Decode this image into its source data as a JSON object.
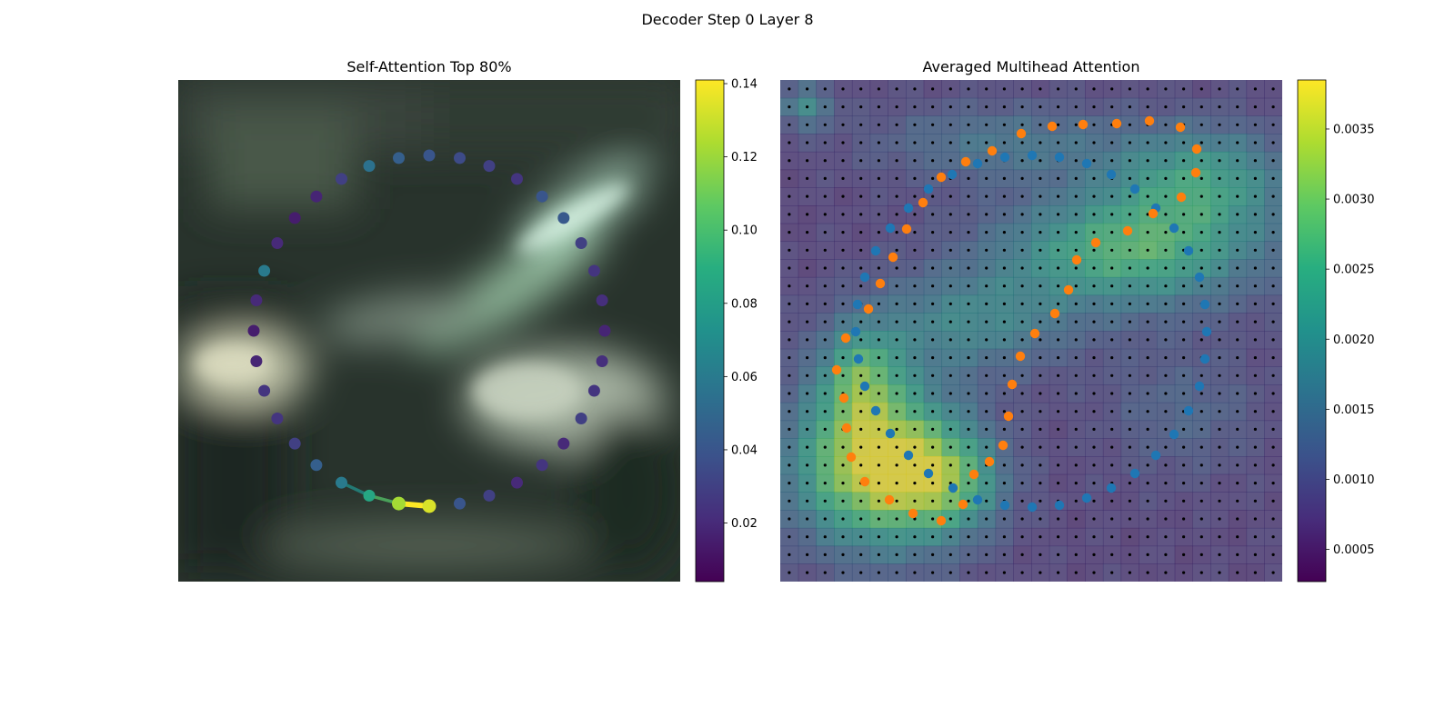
{
  "figure": {
    "title": "Decoder Step 0 Layer 8"
  },
  "chart_data": [
    {
      "type": "scatter",
      "panel": "left",
      "title": "Self-Attention Top 80%",
      "background": "blurred street scene with bright green-white diagonal streaks",
      "colormap": "viridis",
      "colorbar": {
        "range": [
          0.004,
          0.141
        ],
        "ticks": [
          0.02,
          0.04,
          0.06,
          0.08,
          0.1,
          0.12,
          0.14
        ],
        "tick_labels": [
          "0.02",
          "0.04",
          "0.06",
          "0.08",
          "0.10",
          "0.12",
          "0.14"
        ]
      },
      "ring": {
        "count": 36,
        "center": [
          472,
          364
        ],
        "radius": 193,
        "start_angle_deg": 90,
        "values": [
          0.133,
          0.122,
          0.085,
          0.06,
          0.045,
          0.03,
          0.025,
          0.025,
          0.018,
          0.015,
          0.02,
          0.06,
          0.02,
          0.015,
          0.018,
          0.03,
          0.055,
          0.045,
          0.04,
          0.035,
          0.03,
          0.025,
          0.04,
          0.042,
          0.03,
          0.025,
          0.022,
          0.018,
          0.022,
          0.025,
          0.03,
          0.02,
          0.025,
          0.02,
          0.03,
          0.04
        ]
      },
      "highlight_segment": {
        "from_index": 0,
        "to_index": 3,
        "color": "#fde725"
      }
    },
    {
      "type": "heatmap",
      "panel": "right",
      "title": "Averaged Multihead Attention",
      "colormap": "viridis",
      "grid_cells": [
        28,
        28
      ],
      "colorbar": {
        "range": [
          0.00027,
          0.00385
        ],
        "ticks": [
          0.0005,
          0.001,
          0.0015,
          0.002,
          0.0025,
          0.003,
          0.0035
        ],
        "tick_labels": [
          "0.0005",
          "0.0010",
          "0.0015",
          "0.0020",
          "0.0025",
          "0.0030",
          "0.0035"
        ]
      },
      "blobs": [
        {
          "cx": 5,
          "cy": 21,
          "sx": 3.2,
          "sy": 3.0,
          "amp": 0.0032
        },
        {
          "cx": 9,
          "cy": 22,
          "sx": 2.0,
          "sy": 2.0,
          "amp": 0.0014
        },
        {
          "cx": 4,
          "cy": 16,
          "sx": 1.6,
          "sy": 2.0,
          "amp": 0.0016
        },
        {
          "cx": 19,
          "cy": 9,
          "sx": 5.0,
          "sy": 2.2,
          "amp": 0.002
        },
        {
          "cx": 23,
          "cy": 5,
          "sx": 3.5,
          "sy": 2.0,
          "amp": 0.0015
        },
        {
          "cx": 10,
          "cy": 13,
          "sx": 4.0,
          "sy": 2.0,
          "amp": 0.0011
        },
        {
          "cx": 12,
          "cy": 3,
          "sx": 5.0,
          "sy": 1.5,
          "amp": 0.0008
        },
        {
          "cx": 1,
          "cy": 1,
          "sx": 1.0,
          "sy": 0.8,
          "amp": 0.0012
        },
        {
          "cx": 22,
          "cy": 18,
          "sx": 3.0,
          "sy": 2.5,
          "amp": 0.0005
        }
      ],
      "base_value": 0.0007,
      "dot_grid": {
        "rows": 28,
        "cols": 28,
        "color": "#000000"
      },
      "series": [
        {
          "name": "",
          "color": "#1f77b4",
          "points": [
            [
              1195,
              548
            ],
            [
              1165,
              556
            ],
            [
              1135,
              558
            ],
            [
              1105,
              556
            ],
            [
              1075,
              550
            ],
            [
              1048,
              537
            ],
            [
              1021,
              521
            ],
            [
              999,
              501
            ],
            [
              979,
              477
            ],
            [
              963,
              452
            ],
            [
              951,
              425
            ],
            [
              944,
              395
            ],
            [
              941,
              365
            ],
            [
              943,
              335
            ],
            [
              951,
              305
            ],
            [
              963,
              276
            ],
            [
              979,
              251
            ],
            [
              999,
              229
            ],
            [
              1021,
              208
            ],
            [
              1047,
              192
            ],
            [
              1075,
              180
            ],
            [
              1105,
              173
            ],
            [
              1135,
              171
            ],
            [
              1165,
              173
            ],
            [
              1195,
              180
            ],
            [
              1222,
              192
            ],
            [
              1248,
              208
            ],
            [
              1271,
              229
            ],
            [
              1291,
              251
            ],
            [
              1307,
              276
            ],
            [
              1319,
              305
            ],
            [
              1325,
              335
            ],
            [
              1327,
              365
            ],
            [
              1325,
              395
            ],
            [
              1319,
              425
            ],
            [
              1307,
              452
            ],
            [
              1291,
              478
            ],
            [
              1271,
              501
            ],
            [
              1248,
              521
            ],
            [
              1222,
              537
            ]
          ]
        },
        {
          "name": "",
          "color": "#ff7f0e",
          "points": [
            [
              1035,
              573
            ],
            [
              1004,
              565
            ],
            [
              978,
              550
            ],
            [
              951,
              530
            ],
            [
              936,
              503
            ],
            [
              931,
              471
            ],
            [
              928,
              438
            ],
            [
              920,
              407
            ],
            [
              930,
              372
            ],
            [
              955,
              340
            ],
            [
              968,
              312
            ],
            [
              982,
              283
            ],
            [
              997,
              252
            ],
            [
              1015,
              223
            ],
            [
              1035,
              195
            ],
            [
              1062,
              178
            ],
            [
              1091,
              166
            ],
            [
              1123,
              147
            ],
            [
              1157,
              139
            ],
            [
              1191,
              137
            ],
            [
              1228,
              136
            ],
            [
              1264,
              133
            ],
            [
              1298,
              140
            ],
            [
              1316,
              164
            ],
            [
              1315,
              190
            ],
            [
              1299,
              217
            ],
            [
              1268,
              235
            ],
            [
              1240,
              254
            ],
            [
              1205,
              267
            ],
            [
              1184,
              286
            ],
            [
              1175,
              319
            ],
            [
              1160,
              345
            ],
            [
              1138,
              367
            ],
            [
              1122,
              392
            ],
            [
              1113,
              423
            ],
            [
              1109,
              458
            ],
            [
              1103,
              490
            ],
            [
              1088,
              508
            ],
            [
              1071,
              522
            ],
            [
              1059,
              555
            ]
          ]
        }
      ]
    }
  ]
}
